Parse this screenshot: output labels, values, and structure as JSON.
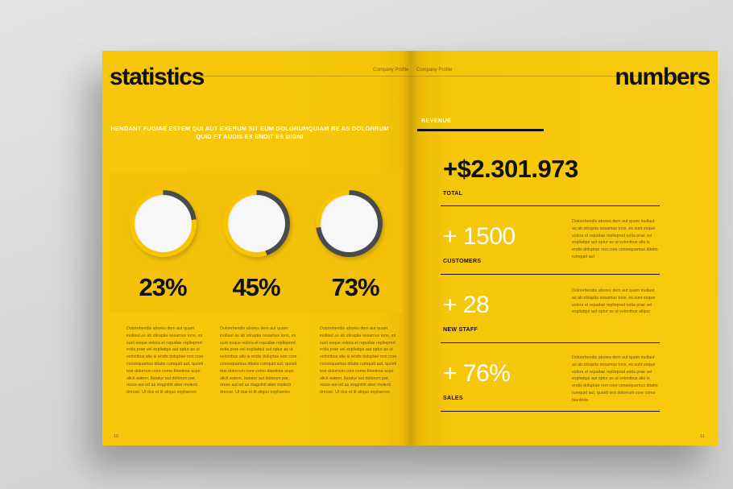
{
  "left_page": {
    "title": "statistics",
    "header_label": "Company Profile",
    "subtitle": "HENDANT FUGIAE ESTEM QUI AUT EXERUM SIT EUM DOLORUMQUIAM RE AS DOLORRUM QUID ET AUDIS EX ENDIT ES DIGNI",
    "stats": [
      {
        "value": 23,
        "label": "23%"
      },
      {
        "value": 45,
        "label": "45%"
      },
      {
        "value": 73,
        "label": "73%"
      }
    ],
    "columns": [
      "Dolorehendis abores dem aut quam inullaut as ab stiruptia nosamus tons, es sunt esque volora et repudae repliepred estia prae vel expliatqui aut optur as ut volonibus alio is endis doluptae non core consequamus ditatio rumquid aut, quosti test dolorrum core como blantiota aspe alicit eatem. Itatatur aut dolorum par, reces aut od as magnihit aber molecti drecae. Ut dus et lit aliquo expliaeres",
      "Dolorehendis abores dem aut quam inullaut as ab stiruptia nosamus tons, es sunt esque volora et repudae repliepred estia prae vel expliatqui aut optur as ut volonibus alio is endis doluptae non core consequamus ditatio rumquid aut, quosti test dolorrum core como blantiota aspe alicit eatem. Itatatur aut dolorum par, reces aut od as magnihit aber molecti drecae. Ut dus et lit aliquo expliaeres",
      "Dolorehendis abores dem aut quam inullaut as ab stiruptia nosamus tons, es sunt esque volora et repudae repliepred estia prae vel expliatqui aut optur as ut volonibus alio is endis doluptae non core consequamus ditatio rumquid aut, quosti test dolorrum core como blantiota aspe alicit eatem. Itatatur aut dolorum par, reces aut od as magnihit aber molecti drecae. Ut dus et lit aliquo expliaeres"
    ],
    "page_number": "10"
  },
  "right_page": {
    "title": "numbers",
    "header_label": "Company Profile",
    "revenue_label": "REVENUE",
    "total_value": "+$2.301.973",
    "total_label": "TOTAL",
    "rows": [
      {
        "value": "+ 1500",
        "label": "CUSTOMERS",
        "text": "Dolorehendis abores dem aut quam inullaut as ab stiruptia nosamus tons, es sunt esque volora et repudae repliepred estia prae vel expliatqui aut optur as ut volonibus alio is endis doluptae non core consequamus ditatio rumquid aut"
      },
      {
        "value": "+ 28",
        "label": "NEW STAFF",
        "text": "Dolorehendis abores dem aut quam inullaut as ab stiruptia nosamus tons, es sunt esque volora et repudae repliepred estia prae vel expliatqui aut optur as ut volonibus aliquo"
      },
      {
        "value": "+ 76%",
        "label": "SALES",
        "text": "Dolorehendis abores dem aut quam inullaut as ab stiruptia nosamus tons, es sunt esque volora et repudae repliepred estia prae vel expliatqui aut optur as ut volonibus alio is endis doluptae non core consequamus ditatio rumquid aut, quosti test dolorrum core como blantiota"
      }
    ],
    "page_number": "11"
  },
  "colors": {
    "page_yellow": "#f9c80b",
    "ring_yellow": "#f8c400",
    "ring_progress": "#4a4a4a",
    "donut_center": "#f7f7f7",
    "text_dark": "#111111",
    "text_light": "#ffffff"
  }
}
